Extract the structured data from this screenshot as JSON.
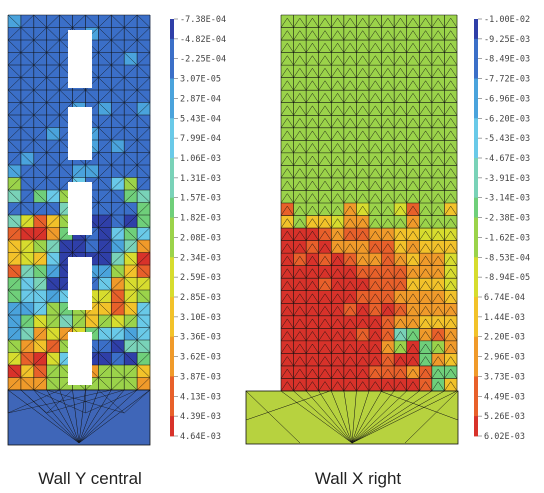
{
  "panels": [
    {
      "caption": "Wall Y central",
      "base_color": "#3f66b8",
      "legend_labels": [
        "-7.38E-04",
        "-4.82E-04",
        "-2.25E-04",
        "3.07E-05",
        "2.87E-04",
        "5.43E-04",
        "7.99E-04",
        "1.06E-03",
        "1.31E-03",
        "1.57E-03",
        "1.82E-03",
        "2.08E-03",
        "2.34E-03",
        "2.59E-03",
        "2.85E-03",
        "3.10E-03",
        "3.36E-03",
        "3.62E-03",
        "3.87E-03",
        "4.13E-03",
        "4.39E-03",
        "4.64E-03"
      ]
    },
    {
      "caption": "Wall X right",
      "base_color": "#b7d23f",
      "legend_labels": [
        "-1.00E-02",
        "-9.25E-03",
        "-8.49E-03",
        "-7.72E-03",
        "-6.96E-03",
        "-6.20E-03",
        "-5.43E-03",
        "-4.67E-03",
        "-3.91E-03",
        "-3.14E-03",
        "-2.38E-03",
        "-1.62E-03",
        "-8.53E-04",
        "-8.94E-05",
        "6.74E-04",
        "1.44E-03",
        "2.20E-03",
        "2.96E-03",
        "3.73E-03",
        "4.49E-03",
        "5.26E-03",
        "6.02E-03"
      ]
    }
  ],
  "colormap": [
    "#2f3fa8",
    "#3b6fc8",
    "#4aa3dc",
    "#69c9e8",
    "#79d2b8",
    "#6fcf7a",
    "#9bd34a",
    "#d7dc2e",
    "#f2c22a",
    "#f09a2a",
    "#e8602a",
    "#d8322a"
  ]
}
